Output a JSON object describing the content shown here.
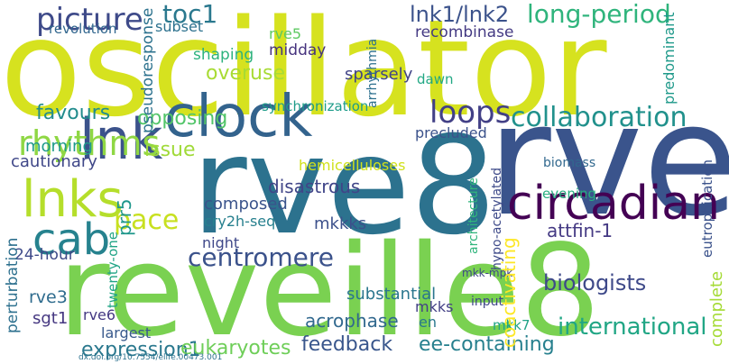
{
  "cloud": {
    "words": [
      {
        "text": "oscillator",
        "color": "#d6e21f"
      },
      {
        "text": "rve8",
        "color": "#3a548c"
      },
      {
        "text": "rve8",
        "color": "#2c728e"
      },
      {
        "text": "reveille8",
        "color": "#7ad151"
      },
      {
        "text": "clock",
        "color": "#33638d"
      },
      {
        "text": "circadian",
        "color": "#440154"
      },
      {
        "text": "lnk",
        "color": "#3b528b"
      },
      {
        "text": "lnks",
        "color": "#b5de2b"
      },
      {
        "text": "cab",
        "color": "#26828e"
      },
      {
        "text": "picture",
        "color": "#3e4a89"
      },
      {
        "text": "toc1",
        "color": "#2a788e"
      },
      {
        "text": "lnk1/lnk2",
        "color": "#3b528b"
      },
      {
        "text": "long-period",
        "color": "#2fb47c"
      },
      {
        "text": "loops",
        "color": "#424086"
      },
      {
        "text": "collaboration",
        "color": "#21918c"
      },
      {
        "text": "rhythms",
        "color": "#8fd744"
      },
      {
        "text": "pace",
        "color": "#c8e020"
      },
      {
        "text": "centromere",
        "color": "#3b528b"
      },
      {
        "text": "biologists",
        "color": "#3e4989"
      },
      {
        "text": "attfin-1",
        "color": "#443983"
      },
      {
        "text": "international",
        "color": "#21a685"
      },
      {
        "text": "feedback",
        "color": "#39568c"
      },
      {
        "text": "ee-containing",
        "color": "#27808e"
      },
      {
        "text": "expression1",
        "color": "#2a788e"
      },
      {
        "text": "eukaryotes",
        "color": "#6ece58"
      },
      {
        "text": "overuse",
        "color": "#a8db34"
      },
      {
        "text": "shaping",
        "color": "#2db27d"
      },
      {
        "text": "midday",
        "color": "#46337e"
      },
      {
        "text": "sparsely",
        "color": "#414487"
      },
      {
        "text": "dawn",
        "color": "#22a884"
      },
      {
        "text": "rve5",
        "color": "#5ec962"
      },
      {
        "text": "favours",
        "color": "#228c8d"
      },
      {
        "text": "opposing",
        "color": "#52c569"
      },
      {
        "text": "morning",
        "color": "#1f9a8a"
      },
      {
        "text": "synchronization",
        "color": "#1e9c89"
      },
      {
        "text": "issue",
        "color": "#a0da39"
      },
      {
        "text": "cautionary",
        "color": "#3f4788"
      },
      {
        "text": "disastrous",
        "color": "#404588"
      },
      {
        "text": "hemicelluloses",
        "color": "#d0e11c"
      },
      {
        "text": "precluded",
        "color": "#3b528b"
      },
      {
        "text": "biomass",
        "color": "#31688e"
      },
      {
        "text": "evening",
        "color": "#28ae80"
      },
      {
        "text": "composed",
        "color": "#3a538b"
      },
      {
        "text": "cry2h-seq",
        "color": "#27808e"
      },
      {
        "text": "night",
        "color": "#3f4889"
      },
      {
        "text": "mkkks",
        "color": "#3c508b"
      },
      {
        "text": "24-hour",
        "color": "#3e4a89"
      },
      {
        "text": "rve3",
        "color": "#2f6c8e"
      },
      {
        "text": "sgt1",
        "color": "#453781"
      },
      {
        "text": "rve6",
        "color": "#443983"
      },
      {
        "text": "largest",
        "color": "#38598c"
      },
      {
        "text": "substantial",
        "color": "#2a768e"
      },
      {
        "text": "input",
        "color": "#404688"
      },
      {
        "text": "mkk-mpk",
        "color": "#3f4788"
      },
      {
        "text": "mkks",
        "color": "#423f85"
      },
      {
        "text": "acrophase",
        "color": "#31688e"
      },
      {
        "text": "mkk7",
        "color": "#20a386"
      },
      {
        "text": "en",
        "color": "#2a788e"
      },
      {
        "text": "coactivating",
        "color": "#fde725"
      },
      {
        "text": "revolution",
        "color": "#31668e"
      },
      {
        "text": "subset",
        "color": "#2c718e"
      },
      {
        "text": "recombinase",
        "color": "#443a83"
      },
      {
        "text": "predominant",
        "color": "#1f998a"
      },
      {
        "text": "pseudoresponse",
        "color": "#2c728e"
      },
      {
        "text": "arrhythmia",
        "color": "#2d708e"
      },
      {
        "text": "twenty-one",
        "color": "#20a486"
      },
      {
        "text": "perturbation",
        "color": "#2d708e"
      },
      {
        "text": "architecture",
        "color": "#30b57c"
      },
      {
        "text": "hypo-acetylated",
        "color": "#3e4a89"
      },
      {
        "text": "complete",
        "color": "#a5db36"
      },
      {
        "text": "eutrophication",
        "color": "#3b528b"
      },
      {
        "text": "prr5",
        "color": "#1f978b"
      },
      {
        "text": "dx.doi.org/10.7554/elife.00473.001",
        "color": "#2c728e"
      }
    ]
  }
}
